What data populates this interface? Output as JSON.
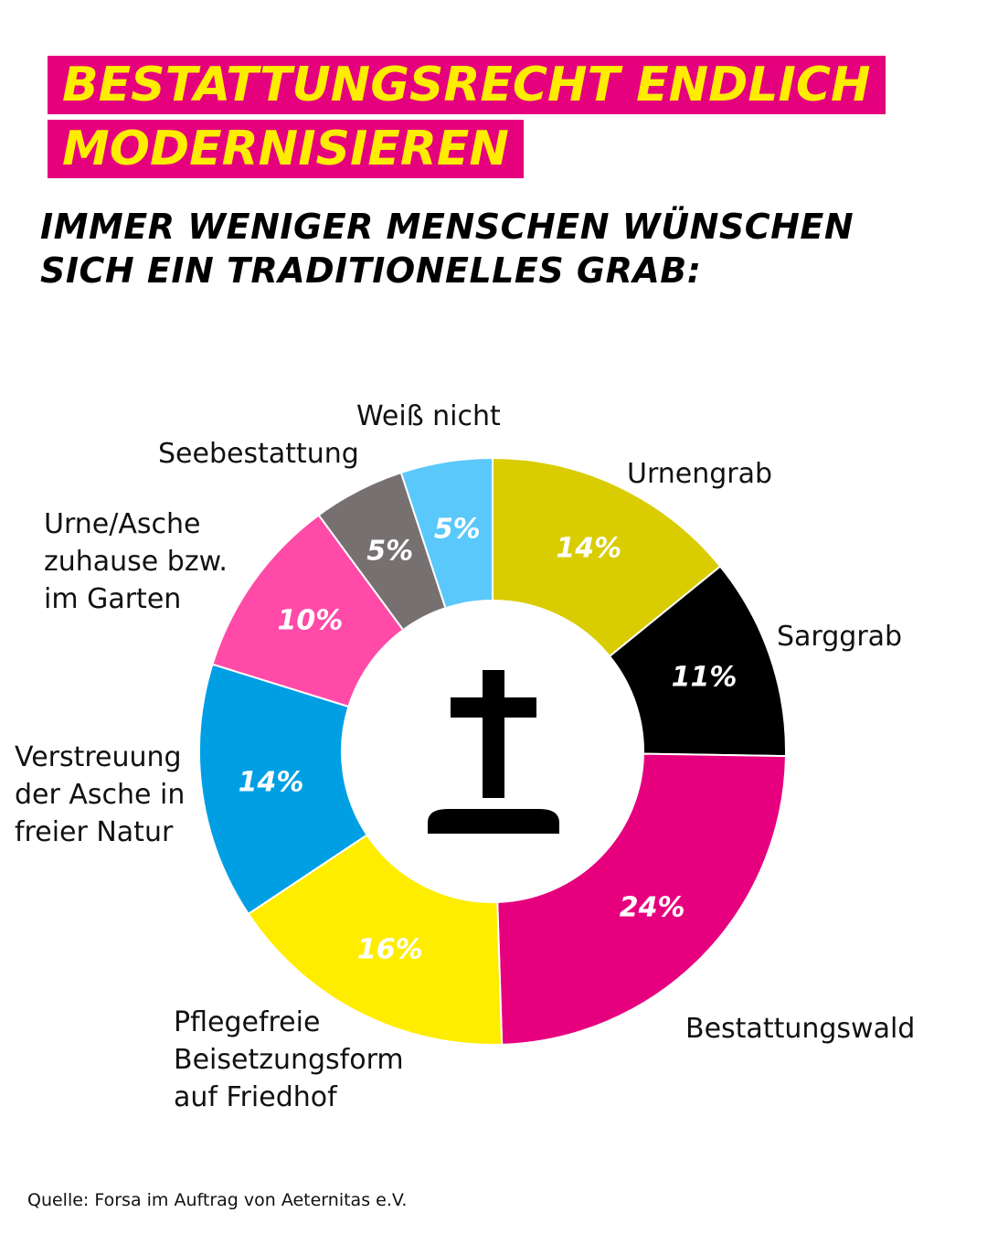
{
  "chart_data": {
    "type": "donut",
    "title": "BESTATTUNGSRECHT ENDLICH MODERNISIEREN",
    "subtitle": "IMMER WENIGER MENSCHEN WÜNSCHEN SICH EIN TRADITIONELLES GRAB:",
    "categories": [
      "Urnengrab",
      "Sarggrab",
      "Bestattungswald",
      "Pflegefreie Beisetzungsform auf Friedhof",
      "Verstreuung der Asche in freier Natur",
      "Urne/Asche zuhause bzw. im Garten",
      "Seebestattung",
      "Weiß nicht"
    ],
    "values": [
      14,
      11,
      24,
      16,
      14,
      10,
      5,
      5
    ],
    "value_labels": [
      "14%",
      "11%",
      "24%",
      "16%",
      "14%",
      "10%",
      "5%",
      "5%"
    ],
    "colors": [
      "#d9cc00",
      "#000000",
      "#e6007e",
      "#ffed00",
      "#009fe3",
      "#ff4aa8",
      "#767170",
      "#5ac8fa"
    ],
    "source": "Quelle: Forsa im Auftrag von Aeternitas e.V."
  }
}
